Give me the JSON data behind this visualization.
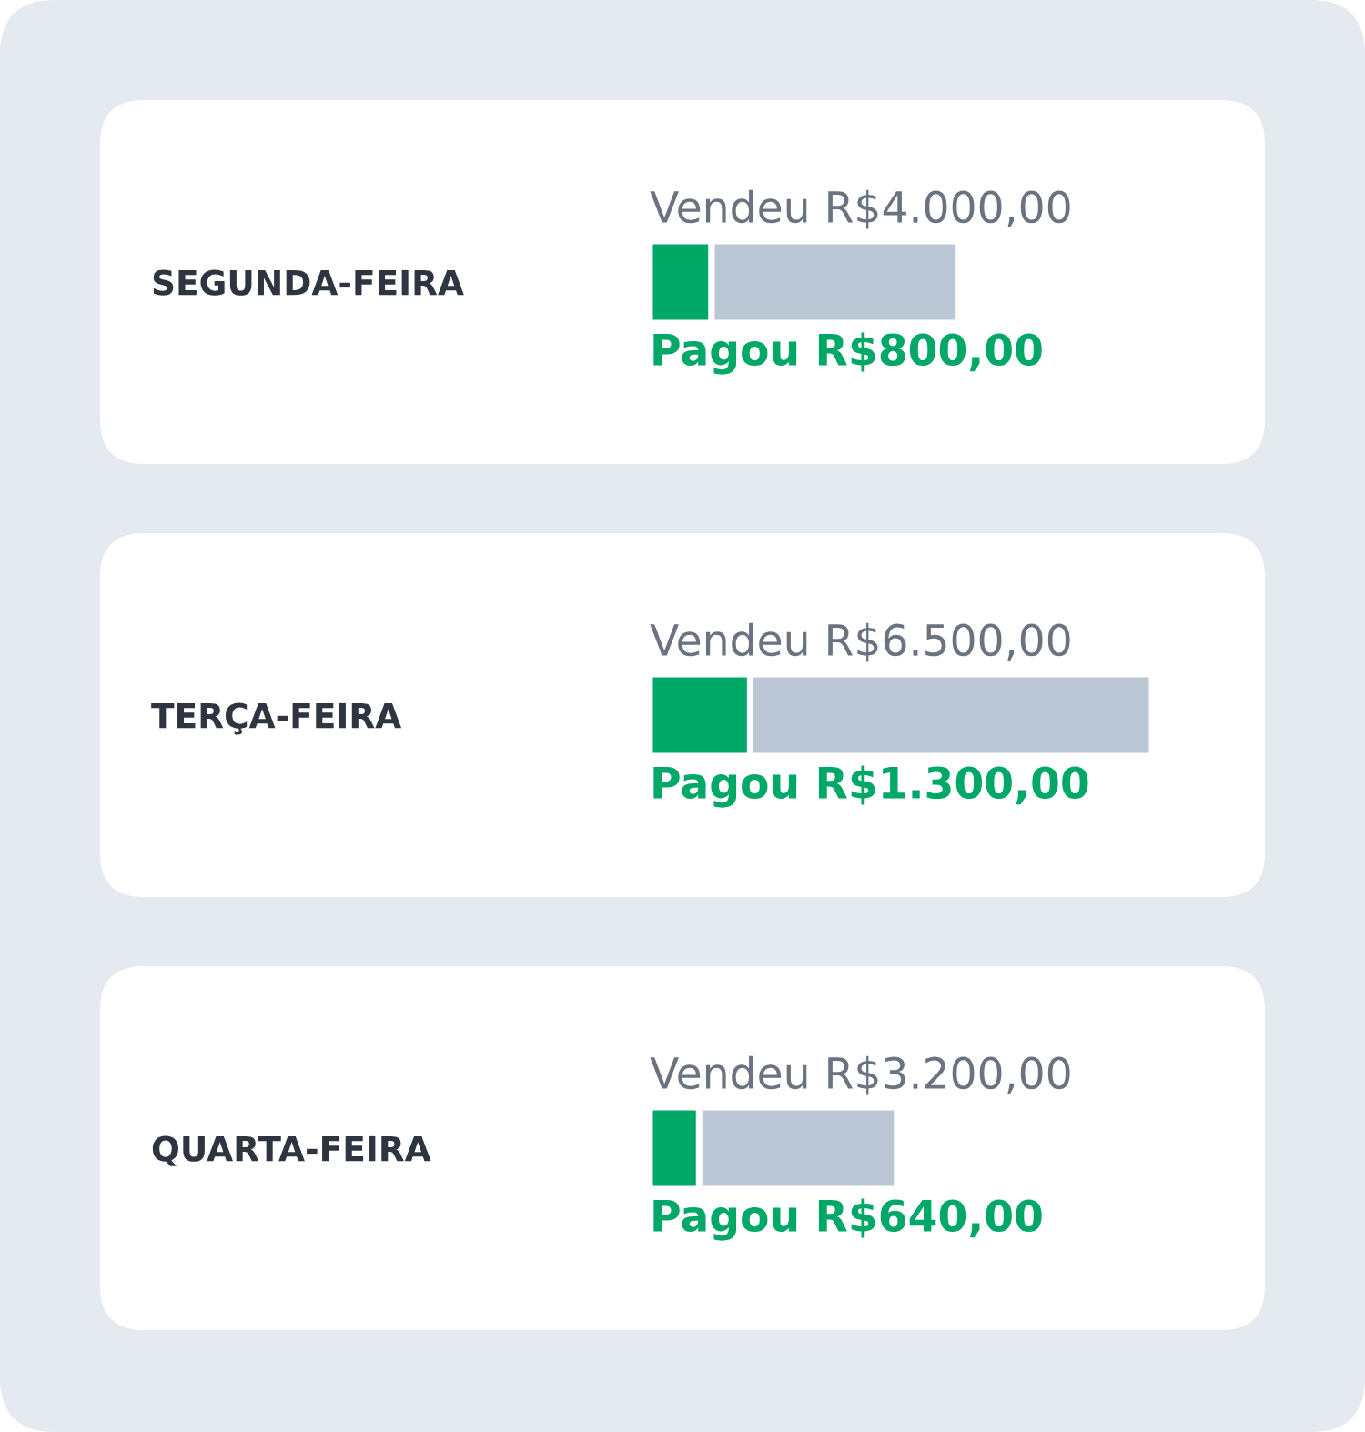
{
  "chart_data": [
    {
      "type": "bar",
      "orientation": "horizontal",
      "stacked": true,
      "categories": [
        "SEGUNDA-FEIRA"
      ],
      "series": [
        {
          "color": "#00a868",
          "values": [
            800
          ],
          "value_labels": [
            "Pagou R$800,00"
          ]
        },
        {
          "color": "#bcc7d5",
          "values": [
            3200
          ]
        }
      ],
      "totals": [
        "Vendeu R$4.000,00"
      ],
      "tick_labels": "y"
    },
    {
      "type": "bar",
      "orientation": "horizontal",
      "stacked": true,
      "categories": [
        "TERÇA-FEIRA"
      ],
      "series": [
        {
          "color": "#00a868",
          "values": [
            1300
          ],
          "value_labels": [
            "Pagou R$1.300,00"
          ]
        },
        {
          "color": "#bcc7d5",
          "values": [
            5200
          ]
        }
      ],
      "totals": [
        "Vendeu R$6.500,00"
      ],
      "tick_labels": "y"
    },
    {
      "type": "bar",
      "orientation": "horizontal",
      "stacked": true,
      "categories": [
        "QUARTA-FEIRA"
      ],
      "series": [
        {
          "color": "#00a868",
          "values": [
            640
          ],
          "value_labels": [
            "Pagou R$640,00"
          ]
        },
        {
          "color": "#bcc7d5",
          "values": [
            2560
          ]
        }
      ],
      "totals": [
        "Vendeu R$3.200,00"
      ],
      "tick_labels": "y"
    }
  ]
}
